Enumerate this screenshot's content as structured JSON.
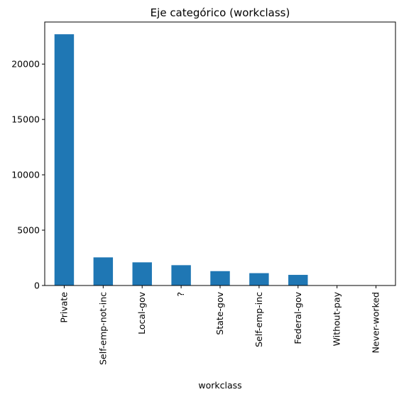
{
  "chart_data": {
    "type": "bar",
    "title": "Eje categórico (workclass)",
    "xlabel": "workclass",
    "ylabel": "",
    "categories": [
      "Private",
      "Self-emp-not-inc",
      "Local-gov",
      "?",
      "State-gov",
      "Self-emp-inc",
      "Federal-gov",
      "Without-pay",
      "Never-worked"
    ],
    "values": [
      22696,
      2541,
      2093,
      1836,
      1298,
      1116,
      960,
      14,
      7
    ],
    "ylim": [
      0,
      23800
    ],
    "yticks": [
      0,
      5000,
      10000,
      15000,
      20000
    ],
    "bar_color": "#1f77b4",
    "grid": false,
    "legend": "none"
  }
}
